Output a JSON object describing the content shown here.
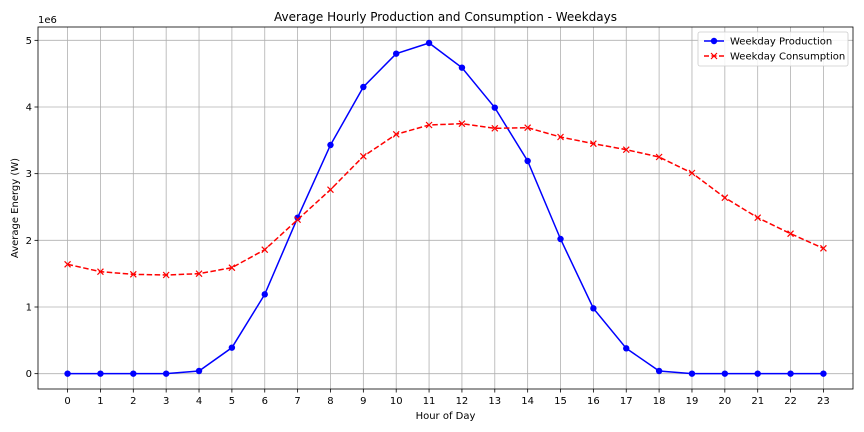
{
  "chart_data": {
    "type": "line",
    "title": "Average Hourly Production and Consumption - Weekdays",
    "xlabel": "Hour of Day",
    "ylabel": "Average Energy (W)",
    "y_offset_label": "1e6",
    "x": [
      0,
      1,
      2,
      3,
      4,
      5,
      6,
      7,
      8,
      9,
      10,
      11,
      12,
      13,
      14,
      15,
      16,
      17,
      18,
      19,
      20,
      21,
      22,
      23
    ],
    "xlim": [
      -0.9,
      23.9
    ],
    "ylim": [
      -0.23,
      5.2
    ],
    "y_ticks": [
      0,
      1,
      2,
      3,
      4,
      5
    ],
    "y_tick_labels": [
      "0",
      "1",
      "2",
      "3",
      "4",
      "5"
    ],
    "grid": true,
    "legend_position": "top-right",
    "series": [
      {
        "name": "Weekday Production",
        "color": "#0000ff",
        "line_style": "solid",
        "marker": "circle",
        "values": [
          0,
          0,
          0,
          0,
          0.04,
          0.39,
          1.19,
          2.34,
          3.43,
          4.3,
          4.8,
          4.96,
          4.59,
          3.99,
          3.19,
          2.02,
          0.98,
          0.38,
          0.04,
          0,
          0,
          0,
          0,
          0
        ]
      },
      {
        "name": "Weekday Consumption",
        "color": "#ff0000",
        "line_style": "dashed",
        "marker": "x",
        "values": [
          1.64,
          1.53,
          1.49,
          1.48,
          1.5,
          1.59,
          1.86,
          2.31,
          2.76,
          3.26,
          3.59,
          3.73,
          3.75,
          3.68,
          3.69,
          3.55,
          3.45,
          3.36,
          3.25,
          3.01,
          2.64,
          2.34,
          2.1,
          1.88
        ]
      }
    ]
  }
}
